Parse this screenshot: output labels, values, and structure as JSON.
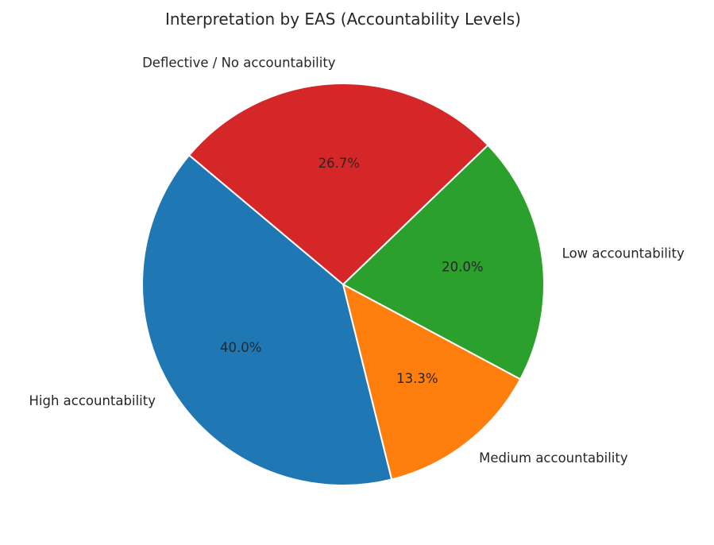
{
  "chart_data": {
    "type": "pie",
    "title": "Interpretation by EAS (Accountability Levels)",
    "categories": [
      "High accountability",
      "Medium accountability",
      "Low accountability",
      "Deflective / No accountability"
    ],
    "values": [
      40.0,
      13.3,
      20.0,
      26.7
    ],
    "labels_pct": [
      "40.0%",
      "13.3%",
      "20.0%",
      "26.7%"
    ],
    "colors": [
      "#1f77b4",
      "#ff7f0e",
      "#2ca02c",
      "#d62728"
    ],
    "start_angle_deg": 140,
    "direction": "counterclockwise",
    "wedge_edge_color": "#ffffff",
    "legend": "none"
  }
}
